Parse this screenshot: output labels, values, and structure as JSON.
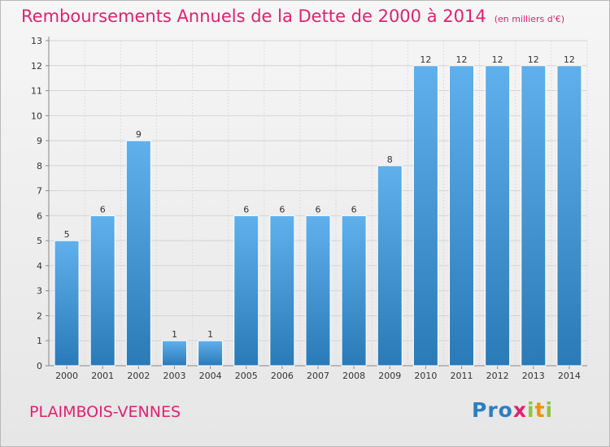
{
  "title": "Remboursements Annuels de la Dette de 2000 à 2014",
  "subtitle": "(en milliers d'€)",
  "commune": "PLAIMBOIS-VENNES",
  "logo": {
    "letters": [
      "P",
      "r",
      "o",
      "x",
      "i",
      "t",
      "i"
    ],
    "colors": [
      "#2a7fc4",
      "#2a7fc4",
      "#2a7fc4",
      "#e0226e",
      "#8dc63f",
      "#f39200",
      "#8dc63f"
    ]
  },
  "colors": {
    "bar": "#4a9ad8",
    "bar_light": "#63b1ea",
    "accent": "#e0226e"
  },
  "chart_data": {
    "type": "bar",
    "categories": [
      "2000",
      "2001",
      "2002",
      "2003",
      "2004",
      "2005",
      "2006",
      "2007",
      "2008",
      "2009",
      "2010",
      "2011",
      "2012",
      "2013",
      "2014"
    ],
    "values": [
      5,
      6,
      9,
      1,
      1,
      6,
      6,
      6,
      6,
      8,
      12,
      12,
      12,
      12,
      12
    ],
    "ylim": [
      0,
      13
    ],
    "yticks": [
      0,
      1,
      2,
      3,
      4,
      5,
      6,
      7,
      8,
      9,
      10,
      11,
      12,
      13
    ],
    "grid": true,
    "title": "Remboursements Annuels de la Dette de 2000 à 2014",
    "xlabel": "",
    "ylabel": ""
  }
}
